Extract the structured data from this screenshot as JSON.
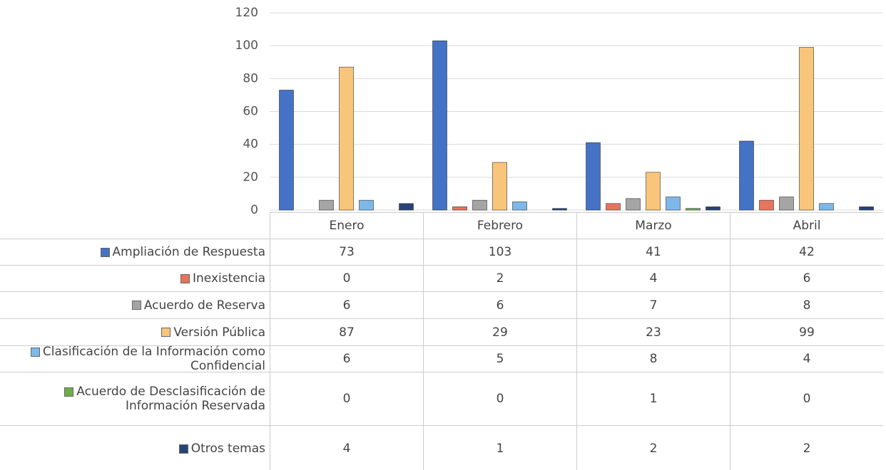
{
  "chart_data": {
    "type": "bar",
    "categories": [
      "Enero",
      "Febrero",
      "Marzo",
      "Abril"
    ],
    "series": [
      {
        "name": "Ampliación de Respuesta",
        "color": "#4472c4",
        "values": [
          73,
          103,
          41,
          42
        ]
      },
      {
        "name": "Inexistencia",
        "color": "#e8735f",
        "values": [
          0,
          2,
          4,
          6
        ]
      },
      {
        "name": "Acuerdo de Reserva",
        "color": "#a5a5a5",
        "values": [
          6,
          6,
          7,
          8
        ]
      },
      {
        "name": "Versión Pública",
        "color": "#f9c57a",
        "values": [
          87,
          29,
          23,
          99
        ]
      },
      {
        "name": "Clasificación de la Información como Confidencial",
        "color": "#7db8e8",
        "values": [
          6,
          5,
          8,
          4
        ]
      },
      {
        "name": "Acuerdo de Desclasificación de Información Reservada",
        "color": "#70ad47",
        "values": [
          0,
          0,
          1,
          0
        ]
      },
      {
        "name": "Otros temas",
        "color": "#264478",
        "values": [
          4,
          1,
          2,
          2
        ]
      }
    ],
    "ylim": [
      0,
      120
    ],
    "yticks": [
      0,
      20,
      40,
      60,
      80,
      100,
      120
    ],
    "grid": true
  }
}
